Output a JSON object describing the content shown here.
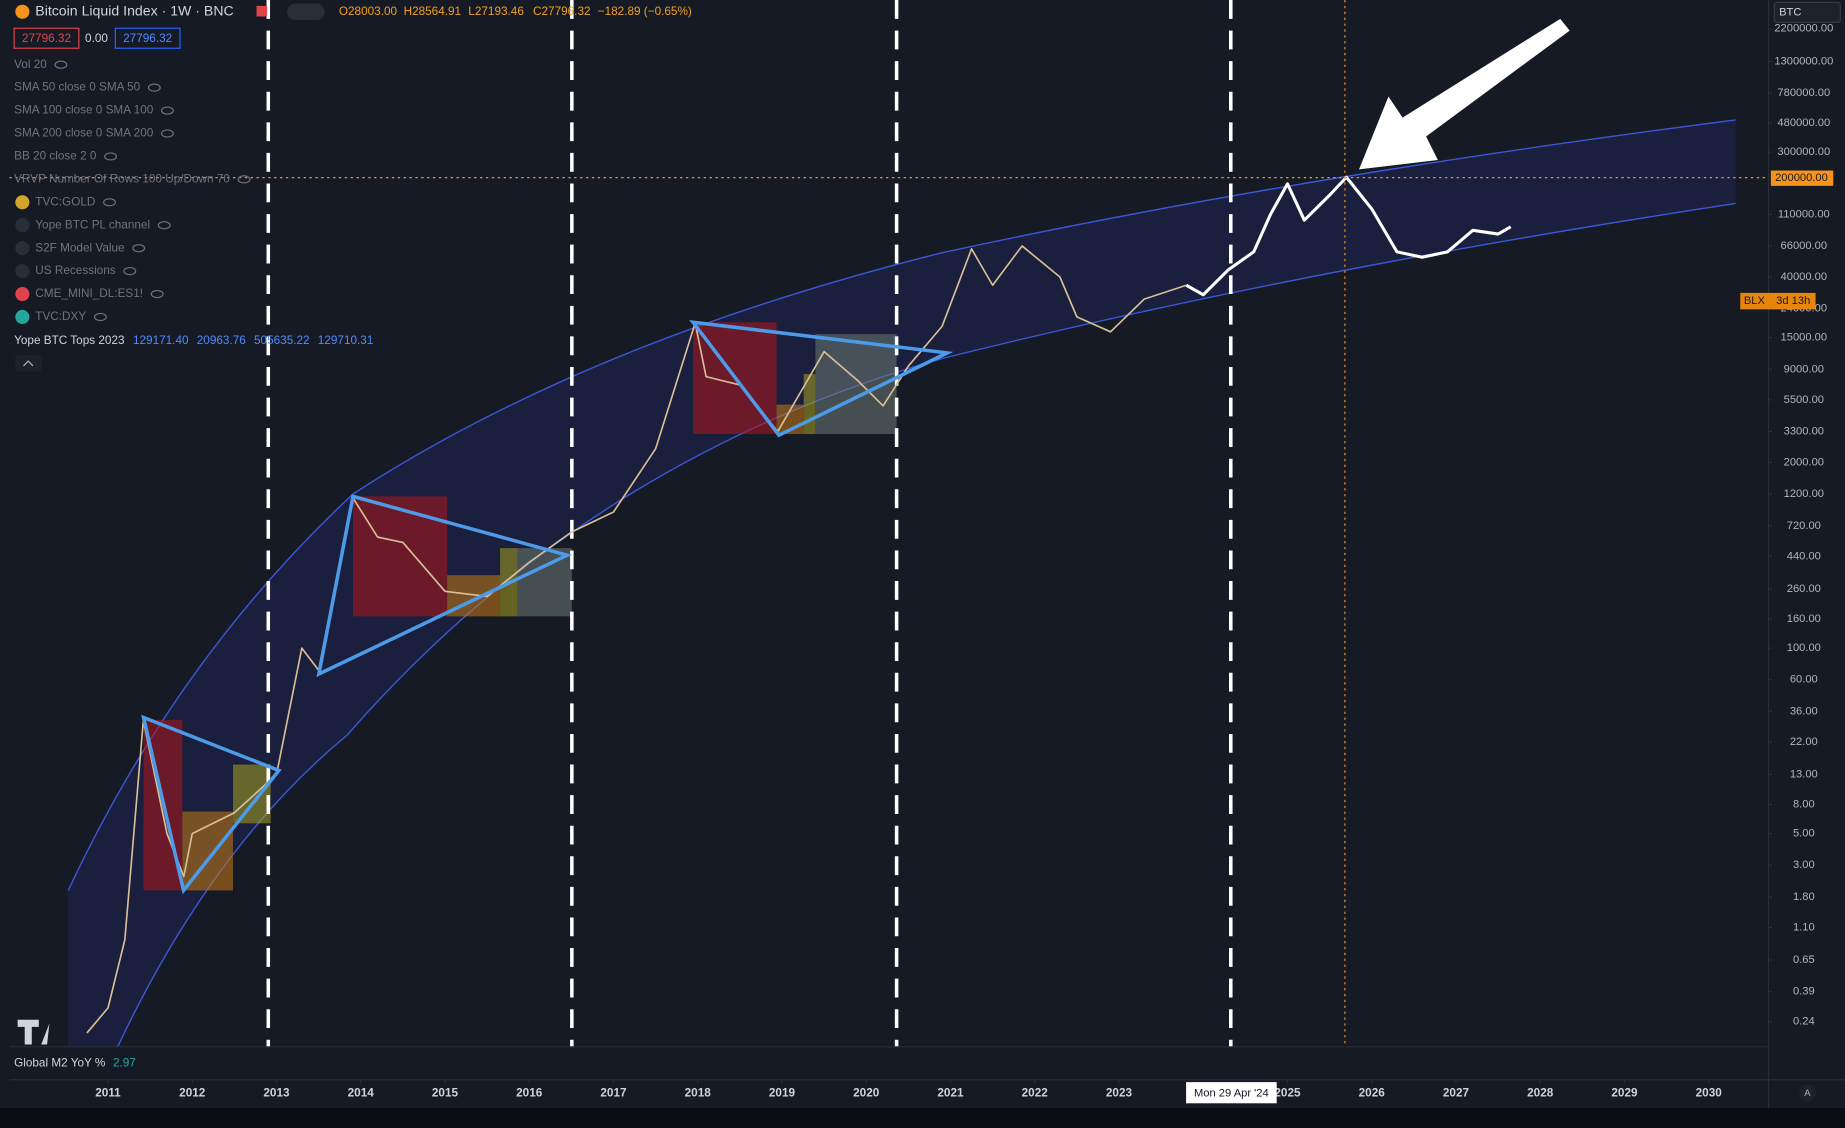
{
  "header": {
    "symbol": "Bitcoin Liquid Index · 1W · BNC",
    "open": "O28003.00",
    "high": "H28564.91",
    "low": "L27193.46",
    "close": "C27796.32",
    "change": "−182.89 (−0.65%)",
    "bid": "27796.32",
    "spread": "0.00",
    "ask": "27796.32"
  },
  "indicators": [
    "Vol 20",
    "SMA 50 close 0 SMA 50",
    "SMA 100 close 0 SMA 100",
    "SMA 200 close 0 SMA 200",
    "BB 20 close 2 0",
    "VRVP Number Of Rows 100 Up/Down 70",
    "TVC:GOLD",
    "Yope BTC PL channel",
    "S2F Model Value",
    "US Recessions",
    "CME_MINI_DL:ES1!",
    "TVC:DXY"
  ],
  "tops_indicator": {
    "name": "Yope BTC Tops 2023",
    "readings": [
      "129171.40",
      "20963.76",
      "505635.22",
      "129710.31"
    ]
  },
  "symbol_selector": "BTC",
  "price_tag": {
    "symbol": "BLX",
    "countdown": "3d 13h"
  },
  "crosshair": {
    "price_label": "200000.00",
    "date_label": "Mon 29 Apr '24"
  },
  "lower_pane": {
    "label": "Global M2 YoY %",
    "value": "2.97"
  },
  "chart_data": {
    "type": "line",
    "log_scale": true,
    "grid": false,
    "xlim": [
      2009.83,
      2030.71
    ],
    "ylim": [
      0.16,
      3500000
    ],
    "xticks": [
      2011,
      2012,
      2013,
      2014,
      2015,
      2016,
      2017,
      2018,
      2019,
      2020,
      2021,
      2022,
      2023,
      2025,
      2026,
      2027,
      2028,
      2029,
      2030
    ],
    "yticks": [
      {
        "value": 2200000,
        "label": "2200000.00"
      },
      {
        "value": 1300000,
        "label": "1300000.00"
      },
      {
        "value": 780000,
        "label": "780000.00"
      },
      {
        "value": 480000,
        "label": "480000.00"
      },
      {
        "value": 300000,
        "label": "300000.00"
      },
      {
        "value": 110000,
        "label": "110000.00"
      },
      {
        "value": 66000,
        "label": "66000.00"
      },
      {
        "value": 40000,
        "label": "40000.00"
      },
      {
        "value": 24000,
        "label": "24000.00"
      },
      {
        "value": 15000,
        "label": "15000.00"
      },
      {
        "value": 9000,
        "label": "9000.00"
      },
      {
        "value": 5500,
        "label": "5500.00"
      },
      {
        "value": 3300,
        "label": "3300.00"
      },
      {
        "value": 2000,
        "label": "2000.00"
      },
      {
        "value": 1200,
        "label": "1200.00"
      },
      {
        "value": 720,
        "label": "720.00"
      },
      {
        "value": 440,
        "label": "440.00"
      },
      {
        "value": 260,
        "label": "260.00"
      },
      {
        "value": 160,
        "label": "160.00"
      },
      {
        "value": 100,
        "label": "100.00"
      },
      {
        "value": 60,
        "label": "60.00"
      },
      {
        "value": 36,
        "label": "36.00"
      },
      {
        "value": 22,
        "label": "22.00"
      },
      {
        "value": 13,
        "label": "13.00"
      },
      {
        "value": 8,
        "label": "8.00"
      },
      {
        "value": 5,
        "label": "5.00"
      },
      {
        "value": 3,
        "label": "3.00"
      },
      {
        "value": 1.8,
        "label": "1.80"
      },
      {
        "value": 1.1,
        "label": "1.10"
      },
      {
        "value": 0.65,
        "label": "0.65"
      },
      {
        "value": 0.39,
        "label": "0.39"
      },
      {
        "value": 0.24,
        "label": "0.24"
      }
    ],
    "series": [
      {
        "color": "#d9bf95",
        "x": [
          2010.75,
          2011.0,
          2011.2,
          2011.42,
          2011.7,
          2011.9,
          2012.0,
          2012.5,
          2013.0,
          2013.3,
          2013.5,
          2013.9,
          2014.2,
          2014.5,
          2015.0,
          2015.5,
          2016.0,
          2016.5,
          2017.0,
          2017.5,
          2017.97,
          2018.1,
          2018.5,
          2018.95,
          2019.5,
          2019.9,
          2020.2,
          2020.5,
          2020.9,
          2021.25,
          2021.5,
          2021.85,
          2022.3,
          2022.5,
          2022.9,
          2023.3,
          2023.8
        ],
        "values": [
          0.2,
          0.3,
          0.9,
          31,
          5,
          2.5,
          5,
          7,
          13,
          100,
          70,
          1150,
          600,
          550,
          250,
          230,
          400,
          650,
          900,
          2500,
          19000,
          8000,
          7000,
          3300,
          12000,
          7500,
          5000,
          9500,
          18000,
          63000,
          35000,
          66000,
          40000,
          21000,
          16500,
          28000,
          35000
        ]
      },
      {
        "color": "#ffffff",
        "x": [
          2023.8,
          2024.0,
          2024.3,
          2024.6,
          2024.8,
          2025.0,
          2025.2,
          2025.5,
          2025.7,
          2026.0,
          2026.3,
          2026.6,
          2026.9,
          2027.2,
          2027.5,
          2027.65
        ],
        "values": [
          35000,
          30000,
          45000,
          60000,
          110000,
          180000,
          100000,
          150000,
          200000,
          120000,
          60000,
          55000,
          60000,
          85000,
          80000,
          90000
        ]
      }
    ]
  }
}
